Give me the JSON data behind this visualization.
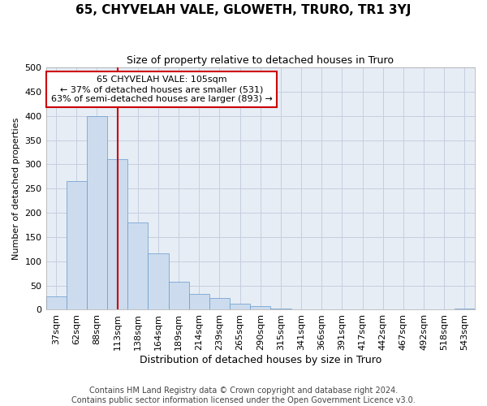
{
  "title": "65, CHYVELAH VALE, GLOWETH, TRURO, TR1 3YJ",
  "subtitle": "Size of property relative to detached houses in Truro",
  "xlabel": "Distribution of detached houses by size in Truro",
  "ylabel": "Number of detached properties",
  "footer_line1": "Contains HM Land Registry data © Crown copyright and database right 2024.",
  "footer_line2": "Contains public sector information licensed under the Open Government Licence v3.0.",
  "categories": [
    "37sqm",
    "62sqm",
    "88sqm",
    "113sqm",
    "138sqm",
    "164sqm",
    "189sqm",
    "214sqm",
    "239sqm",
    "265sqm",
    "290sqm",
    "315sqm",
    "341sqm",
    "366sqm",
    "391sqm",
    "417sqm",
    "442sqm",
    "467sqm",
    "492sqm",
    "518sqm",
    "543sqm"
  ],
  "values": [
    28,
    265,
    400,
    310,
    180,
    116,
    57,
    32,
    24,
    13,
    7,
    2,
    1,
    0,
    0,
    0,
    0,
    0,
    0,
    0,
    2
  ],
  "bar_color": "#ccdcee",
  "bar_edge_color": "#6699cc",
  "grid_color": "#c5cfe0",
  "bg_color": "#e6edf5",
  "red_line_x": 3.0,
  "annotation_title": "65 CHYVELAH VALE: 105sqm",
  "annotation_line1": "← 37% of detached houses are smaller (531)",
  "annotation_line2": "63% of semi-detached houses are larger (893) →",
  "annotation_box_color": "#cc0000",
  "ylim": [
    0,
    500
  ],
  "yticks": [
    0,
    50,
    100,
    150,
    200,
    250,
    300,
    350,
    400,
    450,
    500
  ],
  "title_fontsize": 11,
  "subtitle_fontsize": 9,
  "ylabel_fontsize": 8,
  "xlabel_fontsize": 9,
  "tick_fontsize": 8,
  "footer_fontsize": 7
}
